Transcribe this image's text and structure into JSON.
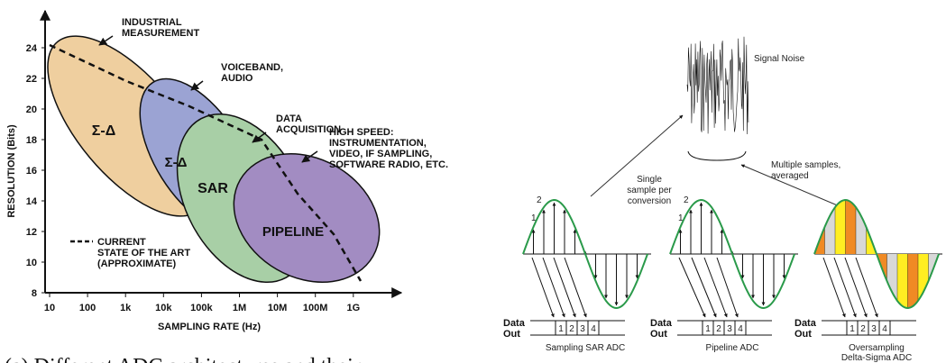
{
  "left": {
    "y_label": "RESOLUTION (Bits)",
    "x_label": "SAMPLING RATE (Hz)",
    "yticks": [
      24,
      22,
      20,
      18,
      16,
      14,
      12,
      10,
      8
    ],
    "xticks": [
      "10",
      "100",
      "1k",
      "10k",
      "100k",
      "1M",
      "10M",
      "100M",
      "1G"
    ],
    "regions": [
      "Σ-Δ",
      "Σ-Δ",
      "SAR",
      "PIPELINE"
    ],
    "annotations": [
      [
        "INDUSTRIAL",
        "MEASUREMENT"
      ],
      [
        "VOICEBAND,",
        "AUDIO"
      ],
      [
        "DATA",
        "ACQUISITION"
      ],
      [
        "HIGH SPEED:",
        "INSTRUMENTATION,",
        "VIDEO, IF SAMPLING,",
        "SOFTWARE RADIO, ETC."
      ]
    ],
    "legend": [
      "CURRENT",
      "STATE OF THE ART",
      "(APPROXIMATE)"
    ],
    "caption": "(a) Different ADC architectures and their"
  },
  "right": {
    "noise_label": "Signal Noise",
    "single_sample": [
      "Single",
      "sample per",
      "conversion"
    ],
    "multiple_samples": [
      "Multiple samples,",
      "averaged"
    ],
    "point_labels": [
      "1",
      "2"
    ],
    "data_out": [
      "Data",
      "Out"
    ],
    "cells": [
      "1",
      "2",
      "3",
      "4"
    ],
    "panels": [
      [
        "Sampling SAR ADC"
      ],
      [
        "Pipeline ADC"
      ],
      [
        "Oversampling",
        "Delta-Sigma ADC"
      ]
    ]
  }
}
